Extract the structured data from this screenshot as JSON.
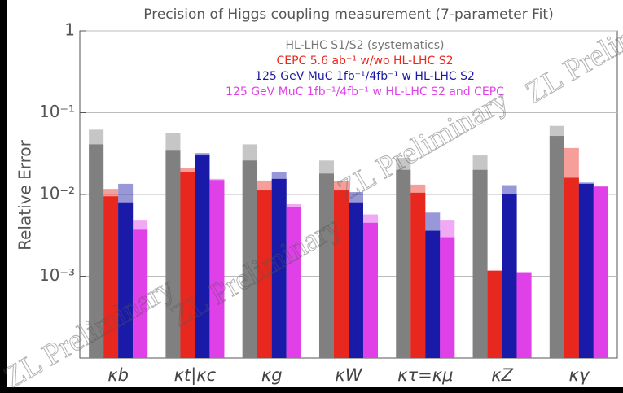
{
  "chart_data": {
    "type": "bar",
    "title": "Precision of Higgs coupling measurement (7-parameter Fit)",
    "y_label": "Relative Error",
    "watermark": "ZL Preliminary",
    "log_y": true,
    "grid": true,
    "legend": "top",
    "categories": [
      "κb",
      "κt|κc",
      "κg",
      "κW",
      "κτ=κμ",
      "κZ",
      "κγ"
    ],
    "series": [
      {
        "name": "HL-LHC S1/S2 (systematics)",
        "color": "#808080",
        "values": [
          0.041,
          0.035,
          0.026,
          0.018,
          0.02,
          0.02,
          0.052
        ],
        "values_alt": [
          0.062,
          0.056,
          0.041,
          0.026,
          0.028,
          0.03,
          0.069
        ]
      },
      {
        "name": "CEPC 5.6 ab⁻¹ w/wo HL-LHC S2",
        "color": "#e8281e",
        "values": [
          0.0095,
          0.019,
          0.0112,
          0.0112,
          0.0105,
          0.00117,
          0.016
        ],
        "values_alt": [
          0.0117,
          0.021,
          0.0148,
          0.0145,
          0.0132,
          0.00117,
          0.037
        ]
      },
      {
        "name": "125 GeV MuC 1fb⁻¹/4fb⁻¹ w HL-LHC S2",
        "color": "#1a1aa8",
        "values": [
          0.008,
          0.03,
          0.0155,
          0.008,
          0.0036,
          0.01,
          0.0135
        ],
        "values_alt": [
          0.0135,
          0.032,
          0.0186,
          0.0107,
          0.006,
          0.013,
          0.014
        ]
      },
      {
        "name": "125 GeV MuC 1fb⁻¹/4fb⁻¹ w HL-LHC S2 and CEPC",
        "color": "#e040e8",
        "values": [
          0.0037,
          0.015,
          0.007,
          0.0045,
          0.003,
          0.00112,
          0.0125
        ],
        "values_alt": [
          0.0049,
          0.0155,
          0.0076,
          0.0057,
          0.0049,
          0.00112,
          0.0125
        ]
      }
    ],
    "ylim": [
      0.0001,
      1
    ],
    "yticks": [
      1,
      {
        "value": 0.1,
        "label": "10⁻¹"
      },
      {
        "value": 0.01,
        "label": "10⁻²"
      },
      {
        "value": 0.001,
        "label": "10⁻³"
      }
    ]
  }
}
